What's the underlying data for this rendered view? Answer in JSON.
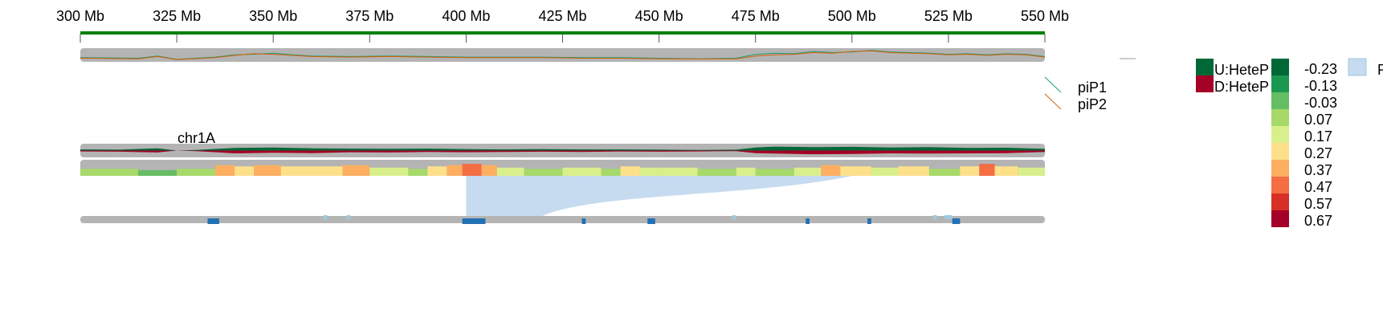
{
  "chart_data": {
    "type": "area",
    "title": "",
    "xlabel": "",
    "ylabel": "",
    "chromosome": "chr1A",
    "x_unit": "Mb",
    "xlim": [
      300,
      550
    ],
    "x_ticks": [
      300,
      325,
      350,
      375,
      400,
      425,
      450,
      475,
      500,
      525,
      550
    ],
    "x_tick_labels": [
      "300 Mb",
      "325 Mb",
      "350 Mb",
      "375 Mb",
      "400 Mb",
      "425 Mb",
      "450 Mb",
      "475 Mb",
      "500 Mb",
      "525 Mb",
      "550 Mb"
    ],
    "colors": {
      "axis": "#008000",
      "track_bg": "#b4b4b4",
      "piP1": "#1b9e77",
      "piP2": "#d95f02",
      "up": "#006837",
      "down": "#a50026",
      "region": "#c6dbef",
      "region_dark": "#2171b5",
      "link": "#9ecae1"
    },
    "diversity_track": {
      "series": [
        {
          "name": "piP1",
          "x": [
            300,
            315,
            320,
            325,
            335,
            340,
            345,
            350,
            355,
            360,
            370,
            380,
            390,
            400,
            410,
            420,
            430,
            440,
            450,
            460,
            470,
            475,
            480,
            485,
            490,
            495,
            500,
            505,
            510,
            515,
            520,
            525,
            530,
            535,
            540,
            545,
            550
          ],
          "values": [
            0.3,
            0.25,
            0.45,
            0.15,
            0.35,
            0.55,
            0.6,
            0.7,
            0.55,
            0.45,
            0.4,
            0.45,
            0.4,
            0.35,
            0.35,
            0.35,
            0.3,
            0.3,
            0.25,
            0.2,
            0.25,
            0.6,
            0.7,
            0.65,
            0.85,
            0.75,
            0.8,
            0.95,
            0.8,
            0.75,
            0.7,
            0.6,
            0.65,
            0.55,
            0.65,
            0.6,
            0.4
          ]
        },
        {
          "name": "piP2",
          "x": [
            300,
            315,
            320,
            325,
            335,
            340,
            345,
            350,
            355,
            360,
            370,
            380,
            390,
            400,
            410,
            420,
            430,
            440,
            450,
            460,
            470,
            475,
            480,
            485,
            490,
            495,
            500,
            505,
            510,
            515,
            520,
            525,
            530,
            535,
            540,
            545,
            550
          ],
          "values": [
            0.25,
            0.2,
            0.4,
            0.12,
            0.3,
            0.5,
            0.65,
            0.6,
            0.5,
            0.4,
            0.35,
            0.4,
            0.35,
            0.3,
            0.3,
            0.3,
            0.25,
            0.25,
            0.2,
            0.18,
            0.2,
            0.45,
            0.55,
            0.6,
            0.75,
            0.7,
            0.85,
            0.9,
            0.75,
            0.7,
            0.65,
            0.55,
            0.6,
            0.5,
            0.6,
            0.55,
            0.35
          ]
        }
      ]
    },
    "heterozygosity_track": {
      "legend": [
        "U:HeteP",
        "D:HeteP"
      ],
      "x": [
        300,
        310,
        320,
        325,
        330,
        340,
        350,
        360,
        370,
        380,
        390,
        400,
        410,
        420,
        430,
        440,
        450,
        460,
        470,
        475,
        480,
        490,
        500,
        510,
        520,
        530,
        540,
        550
      ],
      "up": [
        0.2,
        0.15,
        0.4,
        0.0,
        0.1,
        0.45,
        0.55,
        0.4,
        0.35,
        0.3,
        0.35,
        0.25,
        0.2,
        0.25,
        0.2,
        0.2,
        0.15,
        0.1,
        0.15,
        0.55,
        0.7,
        0.6,
        0.65,
        0.55,
        0.6,
        0.45,
        0.5,
        0.3
      ],
      "down": [
        0.15,
        0.2,
        0.35,
        0.0,
        0.1,
        0.5,
        0.4,
        0.45,
        0.3,
        0.35,
        0.25,
        0.3,
        0.25,
        0.2,
        0.25,
        0.15,
        0.2,
        0.15,
        0.1,
        0.45,
        0.55,
        0.65,
        0.6,
        0.5,
        0.55,
        0.5,
        0.45,
        0.25
      ]
    },
    "fst_heatmap": {
      "scale_labels": [
        "-0.23",
        "-0.13",
        "-0.03",
        "0.07",
        "0.17",
        "0.27",
        "0.37",
        "0.47",
        "0.57",
        "0.67"
      ],
      "scale_colors": [
        "#006837",
        "#1a9850",
        "#66bd63",
        "#a6d96a",
        "#d9ef8b",
        "#fee08b",
        "#fdae61",
        "#f46d43",
        "#d73027",
        "#a50026"
      ],
      "bins": [
        {
          "start": 300,
          "end": 315,
          "value": 0.07
        },
        {
          "start": 315,
          "end": 325,
          "value": -0.03
        },
        {
          "start": 325,
          "end": 335,
          "value": 0.07
        },
        {
          "start": 335,
          "end": 340,
          "value": 0.37
        },
        {
          "start": 340,
          "end": 345,
          "value": 0.27
        },
        {
          "start": 345,
          "end": 352,
          "value": 0.37
        },
        {
          "start": 352,
          "end": 360,
          "value": 0.27
        },
        {
          "start": 360,
          "end": 368,
          "value": 0.27
        },
        {
          "start": 368,
          "end": 375,
          "value": 0.37
        },
        {
          "start": 375,
          "end": 385,
          "value": 0.17
        },
        {
          "start": 385,
          "end": 390,
          "value": 0.07
        },
        {
          "start": 390,
          "end": 395,
          "value": 0.27
        },
        {
          "start": 395,
          "end": 399,
          "value": 0.37
        },
        {
          "start": 399,
          "end": 404,
          "value": 0.47
        },
        {
          "start": 404,
          "end": 408,
          "value": 0.37
        },
        {
          "start": 408,
          "end": 415,
          "value": 0.17
        },
        {
          "start": 415,
          "end": 425,
          "value": 0.07
        },
        {
          "start": 425,
          "end": 435,
          "value": 0.17
        },
        {
          "start": 435,
          "end": 440,
          "value": 0.07
        },
        {
          "start": 440,
          "end": 445,
          "value": 0.27
        },
        {
          "start": 445,
          "end": 450,
          "value": 0.17
        },
        {
          "start": 450,
          "end": 460,
          "value": 0.17
        },
        {
          "start": 460,
          "end": 470,
          "value": 0.07
        },
        {
          "start": 470,
          "end": 475,
          "value": 0.17
        },
        {
          "start": 475,
          "end": 485,
          "value": 0.07
        },
        {
          "start": 485,
          "end": 492,
          "value": 0.17
        },
        {
          "start": 492,
          "end": 497,
          "value": 0.37
        },
        {
          "start": 497,
          "end": 505,
          "value": 0.27
        },
        {
          "start": 505,
          "end": 512,
          "value": 0.17
        },
        {
          "start": 512,
          "end": 520,
          "value": 0.27
        },
        {
          "start": 520,
          "end": 528,
          "value": 0.07
        },
        {
          "start": 528,
          "end": 533,
          "value": 0.27
        },
        {
          "start": 533,
          "end": 537,
          "value": 0.47
        },
        {
          "start": 537,
          "end": 543,
          "value": 0.27
        },
        {
          "start": 543,
          "end": 550,
          "value": 0.17
        }
      ]
    },
    "regions_track": {
      "legend": "R",
      "highlight": {
        "start": 400,
        "end": 500
      },
      "regions": [
        {
          "start": 333,
          "end": 336,
          "strong": true
        },
        {
          "start": 363,
          "end": 364,
          "strong": false
        },
        {
          "start": 369,
          "end": 370,
          "strong": false
        },
        {
          "start": 399,
          "end": 405,
          "strong": true
        },
        {
          "start": 430,
          "end": 431,
          "strong": true
        },
        {
          "start": 447,
          "end": 449,
          "strong": true
        },
        {
          "start": 469,
          "end": 470,
          "strong": false
        },
        {
          "start": 488,
          "end": 489,
          "strong": true
        },
        {
          "start": 504,
          "end": 505,
          "strong": true
        },
        {
          "start": 521,
          "end": 522,
          "strong": false
        },
        {
          "start": 524,
          "end": 526,
          "strong": false
        },
        {
          "start": 526,
          "end": 528,
          "strong": true
        }
      ]
    }
  }
}
